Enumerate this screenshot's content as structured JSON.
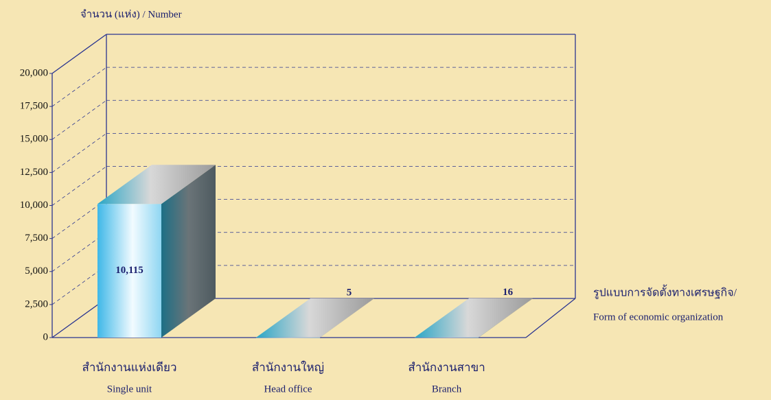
{
  "chart_data": {
    "type": "bar3d",
    "y_axis_label": "จำนวน (แห่ง)  /  Number",
    "x_axis_label": [
      "รูปแบบการจัดตั้งทางเศรษฐกิจ/",
      "Form of  economic organization"
    ],
    "categories": [
      "สำนักงานแห่งเดียว",
      "สำนักงานใหญ่",
      "สำนักงานสาขา"
    ],
    "categories_en": [
      "Single unit",
      "Head office",
      "Branch"
    ],
    "values": [
      10115,
      5,
      16
    ],
    "value_labels": [
      "10,115",
      "5",
      "16"
    ],
    "ylim": [
      0,
      20000
    ],
    "yticks": [
      0,
      {
        "value": 2500,
        "label": "2,500"
      },
      {
        "value": 5000,
        "label": "5,000"
      },
      {
        "value": 7500,
        "label": "7,500"
      },
      {
        "value": 10000,
        "label": "10,000"
      },
      {
        "value": 12500,
        "label": "12,500"
      },
      {
        "value": 15000,
        "label": "15,000"
      },
      {
        "value": 17500,
        "label": "17,500"
      },
      {
        "value": 20000,
        "label": "20,000"
      }
    ],
    "grid": true
  }
}
